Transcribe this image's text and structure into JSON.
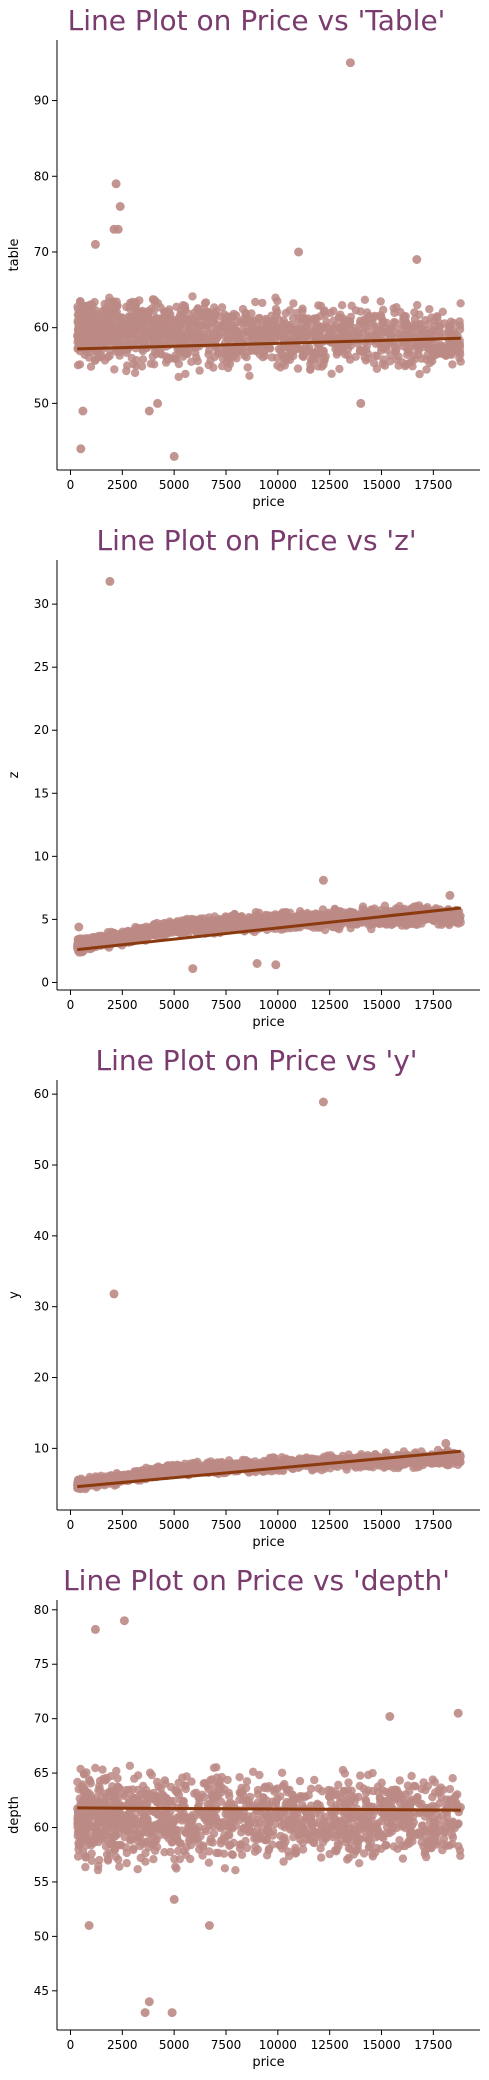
{
  "chart_data": [
    {
      "type": "scatter",
      "title": "Line Plot on Price vs 'Table'",
      "xlabel": "price",
      "ylabel": "table",
      "xlim": [
        -650,
        19750
      ],
      "ylim": [
        41.2,
        98.0
      ],
      "xticks": [
        0,
        2500,
        5000,
        7500,
        10000,
        12500,
        15000,
        17500
      ],
      "yticks": [
        50,
        60,
        70,
        80,
        90
      ],
      "band": {
        "x": [
          326,
          18823
        ],
        "low": [
          53,
          53
        ],
        "high": [
          66,
          64
        ]
      },
      "fit_line": {
        "x": [
          326,
          18823
        ],
        "y": [
          57.2,
          58.6
        ]
      },
      "outliers": {
        "x": [
          13500,
          2200,
          2400,
          2300,
          2100,
          500,
          5000,
          4200,
          600,
          3800,
          16700,
          11000,
          14000,
          1200
        ],
        "y": [
          95.0,
          79.0,
          76.0,
          73.0,
          73.0,
          44.0,
          43.0,
          50.0,
          49.0,
          49.0,
          69.0,
          70.0,
          50.0,
          71.0
        ]
      },
      "colors": {
        "points": "#bc8a85",
        "line": "#8b3a0f",
        "title": "#7a3b6e"
      }
    },
    {
      "type": "scatter",
      "title": "Line Plot on Price vs 'z'",
      "xlabel": "price",
      "ylabel": "z",
      "xlim": [
        -650,
        19750
      ],
      "ylim": [
        -0.6,
        33.5
      ],
      "xticks": [
        0,
        2500,
        5000,
        7500,
        10000,
        12500,
        15000,
        17500
      ],
      "yticks": [
        0,
        5,
        10,
        15,
        20,
        25,
        30
      ],
      "band": {
        "x": [
          326,
          5000,
          10000,
          18823
        ],
        "low": [
          2.2,
          3.6,
          3.9,
          4.2
        ],
        "high": [
          3.6,
          5.2,
          5.8,
          6.5
        ]
      },
      "fit_line": {
        "x": [
          326,
          18823
        ],
        "y": [
          2.6,
          5.9
        ]
      },
      "outliers": {
        "x": [
          1900,
          12200,
          9000,
          9900,
          5900,
          18300,
          400
        ],
        "y": [
          31.8,
          8.1,
          1.5,
          1.4,
          1.1,
          6.9,
          4.4
        ]
      },
      "colors": {
        "points": "#bc8a85",
        "line": "#8b3a0f",
        "title": "#7a3b6e"
      }
    },
    {
      "type": "scatter",
      "title": "Line Plot on Price vs 'y'",
      "xlabel": "price",
      "ylabel": "y",
      "xlim": [
        -650,
        19750
      ],
      "ylim": [
        1.3,
        62.0
      ],
      "xticks": [
        0,
        2500,
        5000,
        7500,
        10000,
        12500,
        15000,
        17500
      ],
      "yticks": [
        10,
        20,
        30,
        40,
        50,
        60
      ],
      "band": {
        "x": [
          326,
          5000,
          10000,
          18823
        ],
        "low": [
          3.8,
          6.0,
          6.5,
          7.0
        ],
        "high": [
          5.8,
          8.0,
          9.0,
          10.2
        ]
      },
      "fit_line": {
        "x": [
          326,
          18823
        ],
        "y": [
          4.6,
          9.6
        ]
      },
      "outliers": {
        "x": [
          12200,
          2100,
          18100
        ],
        "y": [
          58.9,
          31.8,
          10.7
        ]
      },
      "colors": {
        "points": "#bc8a85",
        "line": "#8b3a0f",
        "title": "#7a3b6e"
      }
    },
    {
      "type": "scatter",
      "title": "Line Plot on Price vs 'depth'",
      "xlabel": "price",
      "ylabel": "depth",
      "xlim": [
        -650,
        19750
      ],
      "ylim": [
        41.4,
        80.9
      ],
      "xticks": [
        0,
        2500,
        5000,
        7500,
        10000,
        12500,
        15000,
        17500
      ],
      "yticks": [
        45,
        50,
        55,
        60,
        65,
        70,
        75,
        80
      ],
      "band": {
        "x": [
          326,
          18823
        ],
        "low": [
          55,
          56
        ],
        "high": [
          67,
          65.5
        ]
      },
      "fit_line": {
        "x": [
          326,
          18823
        ],
        "y": [
          61.8,
          61.6
        ]
      },
      "outliers": {
        "x": [
          2600,
          1200,
          3800,
          4900,
          3600,
          6700,
          18700,
          15400,
          900,
          5000
        ],
        "y": [
          79.0,
          78.2,
          44.0,
          43.0,
          43.0,
          51.0,
          70.5,
          70.2,
          51.0,
          53.4
        ]
      },
      "colors": {
        "points": "#bc8a85",
        "line": "#8b3a0f",
        "title": "#7a3b6e"
      }
    }
  ]
}
